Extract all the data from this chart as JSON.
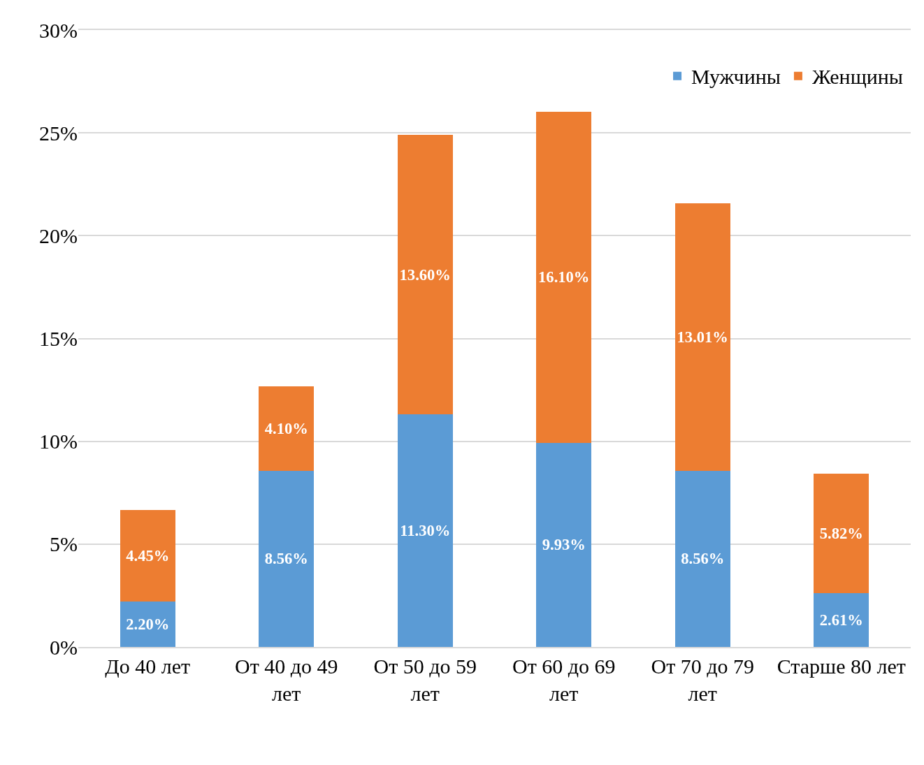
{
  "chart_data": {
    "type": "bar",
    "stacked": true,
    "categories": [
      "До 40 лет",
      "От 40 до 49 лет",
      "От 50 до 59 лет",
      "От 60 до 69 лет",
      "От 70 до 79 лет",
      "Старше 80 лет"
    ],
    "series": [
      {
        "name": "Мужчины",
        "color": "#5b9bd5",
        "values": [
          2.2,
          8.56,
          11.3,
          9.93,
          8.56,
          2.61
        ],
        "value_labels": [
          "2.20%",
          "8.56%",
          "11.30%",
          "9.93%",
          "8.56%",
          "2.61%"
        ]
      },
      {
        "name": "Женщины",
        "color": "#ed7d31",
        "values": [
          4.45,
          4.1,
          13.6,
          16.1,
          13.01,
          5.82
        ],
        "value_labels": [
          "4.45%",
          "4.10%",
          "13.60%",
          "16.10%",
          "13.01%",
          "5.82%"
        ]
      }
    ],
    "ylim": [
      0,
      30
    ],
    "yticks": [
      {
        "value": 0,
        "label": "0%"
      },
      {
        "value": 5,
        "label": "5%"
      },
      {
        "value": 10,
        "label": "10%"
      },
      {
        "value": 15,
        "label": "15%"
      },
      {
        "value": 20,
        "label": "20%"
      },
      {
        "value": 25,
        "label": "25%"
      },
      {
        "value": 30,
        "label": "30%"
      }
    ],
    "grid": "y",
    "legend": "top right"
  }
}
